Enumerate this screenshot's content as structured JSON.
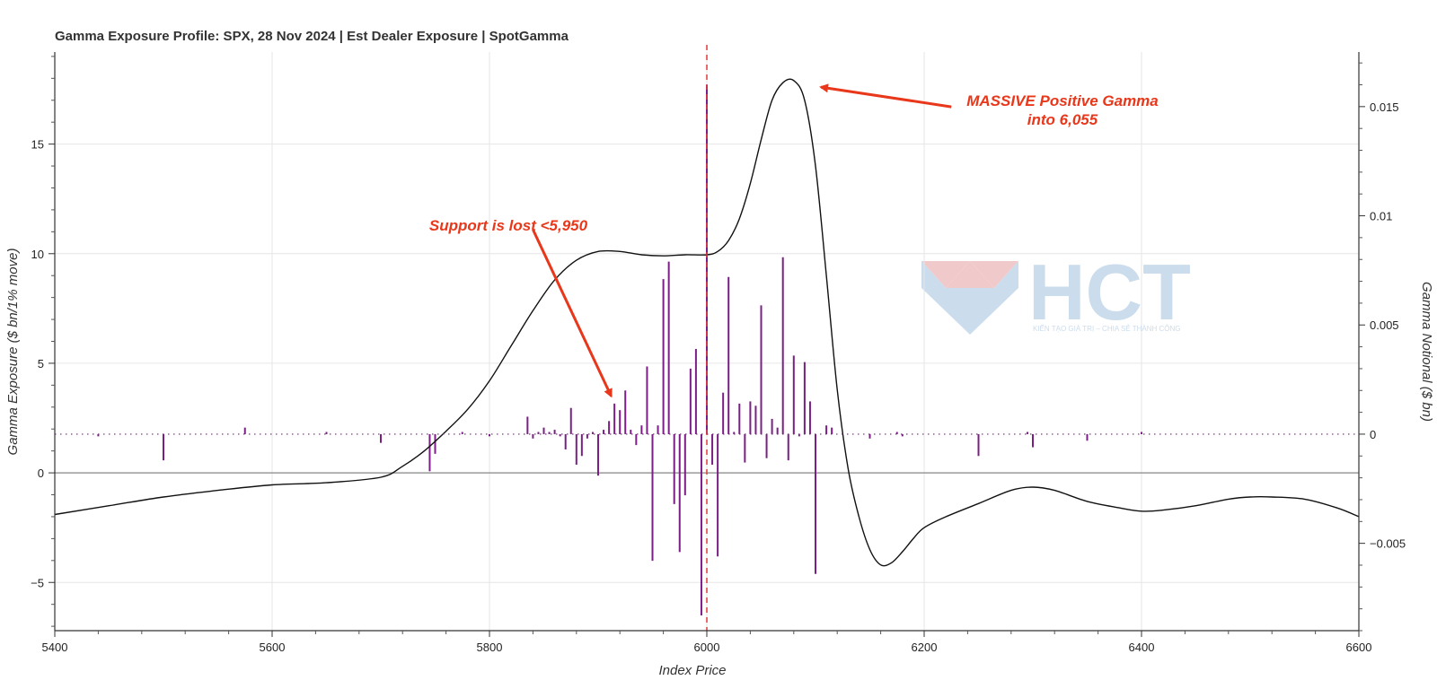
{
  "chart_data": {
    "type": "line",
    "title": "Gamma Exposure Profile: SPX, 28 Nov 2024 | Est Dealer Exposure | SpotGamma",
    "xlabel": "Index Price",
    "ylabel": "Gamma Exposure ($ bn/1% move)",
    "y2label": "Gamma Notional ($ bn)",
    "xlim": [
      5400,
      6600
    ],
    "ylim": [
      -7.2,
      19.2
    ],
    "y2lim": [
      -0.009,
      0.0175
    ],
    "x_ticks": [
      5400,
      5600,
      5800,
      6000,
      6200,
      6400,
      6600
    ],
    "y_ticks": [
      {
        "value": -5,
        "label": "−5"
      },
      {
        "value": 0,
        "label": "0"
      },
      {
        "value": 5,
        "label": "5"
      },
      {
        "value": 10,
        "label": "10"
      },
      {
        "value": 15,
        "label": "15"
      }
    ],
    "y2_ticks": [
      {
        "value": -0.005,
        "label": "−0.005"
      },
      {
        "value": 0,
        "label": "0"
      },
      {
        "value": 0.005,
        "label": "0.005"
      },
      {
        "value": 0.01,
        "label": "0.01"
      },
      {
        "value": 0.015,
        "label": "0.015"
      }
    ],
    "grid": true,
    "spot_line": {
      "x": 6000,
      "color": "#e23a3a",
      "style": "dashed"
    },
    "zero_line_color": "#999999",
    "series": [
      {
        "type": "line",
        "axis": "left",
        "color": "#111111",
        "x": [
          5400,
          5450,
          5500,
          5550,
          5600,
          5650,
          5700,
          5720,
          5740,
          5760,
          5780,
          5800,
          5820,
          5840,
          5860,
          5880,
          5900,
          5920,
          5940,
          5960,
          5980,
          6000,
          6010,
          6020,
          6030,
          6040,
          6050,
          6060,
          6070,
          6080,
          6090,
          6100,
          6110,
          6120,
          6130,
          6140,
          6150,
          6160,
          6170,
          6180,
          6190,
          6200,
          6220,
          6250,
          6280,
          6300,
          6320,
          6350,
          6380,
          6400,
          6420,
          6450,
          6480,
          6500,
          6520,
          6550,
          6580,
          6600
        ],
        "y": [
          -1.9,
          -1.5,
          -1.1,
          -0.8,
          -0.55,
          -0.45,
          -0.2,
          0.3,
          1.0,
          1.9,
          2.9,
          4.2,
          5.8,
          7.4,
          8.8,
          9.7,
          10.1,
          10.1,
          9.95,
          9.9,
          9.95,
          9.95,
          10.1,
          10.6,
          11.6,
          13.2,
          15.2,
          17.0,
          17.8,
          17.9,
          17.0,
          14.0,
          9.0,
          3.8,
          0.2,
          -2.0,
          -3.5,
          -4.2,
          -4.1,
          -3.6,
          -3.0,
          -2.5,
          -2.0,
          -1.4,
          -0.8,
          -0.65,
          -0.8,
          -1.3,
          -1.6,
          -1.75,
          -1.7,
          -1.5,
          -1.2,
          -1.1,
          -1.1,
          -1.2,
          -1.6,
          -2.0
        ]
      },
      {
        "type": "bar",
        "axis": "right",
        "color": "#7b1f86",
        "x": [
          5440,
          5500,
          5575,
          5650,
          5700,
          5745,
          5750,
          5775,
          5800,
          5835,
          5840,
          5845,
          5850,
          5855,
          5860,
          5865,
          5870,
          5875,
          5880,
          5885,
          5890,
          5895,
          5900,
          5905,
          5910,
          5915,
          5920,
          5925,
          5930,
          5935,
          5940,
          5945,
          5950,
          5955,
          5960,
          5965,
          5970,
          5975,
          5980,
          5985,
          5990,
          5995,
          6000,
          6005,
          6010,
          6015,
          6020,
          6025,
          6030,
          6035,
          6040,
          6045,
          6050,
          6055,
          6060,
          6065,
          6070,
          6075,
          6080,
          6085,
          6090,
          6095,
          6100,
          6110,
          6115,
          6150,
          6175,
          6180,
          6250,
          6295,
          6300,
          6350,
          6400
        ],
        "values": [
          -0.0001,
          -0.0012,
          0.0003,
          0.0001,
          -0.0004,
          -0.0017,
          -0.0009,
          0.0001,
          -0.0001,
          0.0008,
          -0.0002,
          0.0001,
          0.0003,
          0.0001,
          0.0002,
          -0.0001,
          -0.0007,
          0.0012,
          -0.0014,
          -0.001,
          -0.0002,
          0.0001,
          -0.0019,
          0.0002,
          0.0006,
          0.0014,
          0.0011,
          0.002,
          0.0002,
          -0.0005,
          0.0004,
          0.0031,
          -0.0058,
          0.0004,
          0.0071,
          0.0079,
          -0.0032,
          -0.0054,
          -0.0028,
          0.003,
          0.0039,
          -0.0083,
          0.016,
          -0.0014,
          -0.0056,
          0.0019,
          0.0072,
          0.0001,
          0.0014,
          -0.0013,
          0.0015,
          0.0013,
          0.0059,
          -0.0011,
          0.0007,
          0.0003,
          0.0081,
          -0.0012,
          0.0036,
          -0.0001,
          0.0033,
          0.0015,
          -0.0064,
          0.0004,
          0.0003,
          -0.0002,
          0.0001,
          -0.0001,
          -0.001,
          0.0001,
          -0.0006,
          -0.0003,
          0.0001
        ]
      },
      {
        "type": "baseline",
        "axis": "right",
        "style": "dotted",
        "color": "#7b1f86",
        "value": 0
      }
    ],
    "annotations": [
      {
        "text_lines": [
          "MASSIVE Positive Gamma",
          "into 6,055"
        ],
        "color": "#e8371a",
        "from": [
          6225,
          16.7
        ],
        "to": [
          6105,
          17.6
        ]
      },
      {
        "text_lines": [
          "Support is lost <5,950"
        ],
        "color": "#e8371a",
        "from": [
          5840,
          11.1
        ],
        "to": [
          5912,
          3.5
        ]
      }
    ]
  },
  "watermark": {
    "text": "HCT",
    "subtext": "KIẾN TẠO GIÁ TRỊ – CHIA SẺ THÀNH CÔNG",
    "colors": {
      "red": "#efc5c5",
      "blue": "#c6d9ea"
    }
  }
}
